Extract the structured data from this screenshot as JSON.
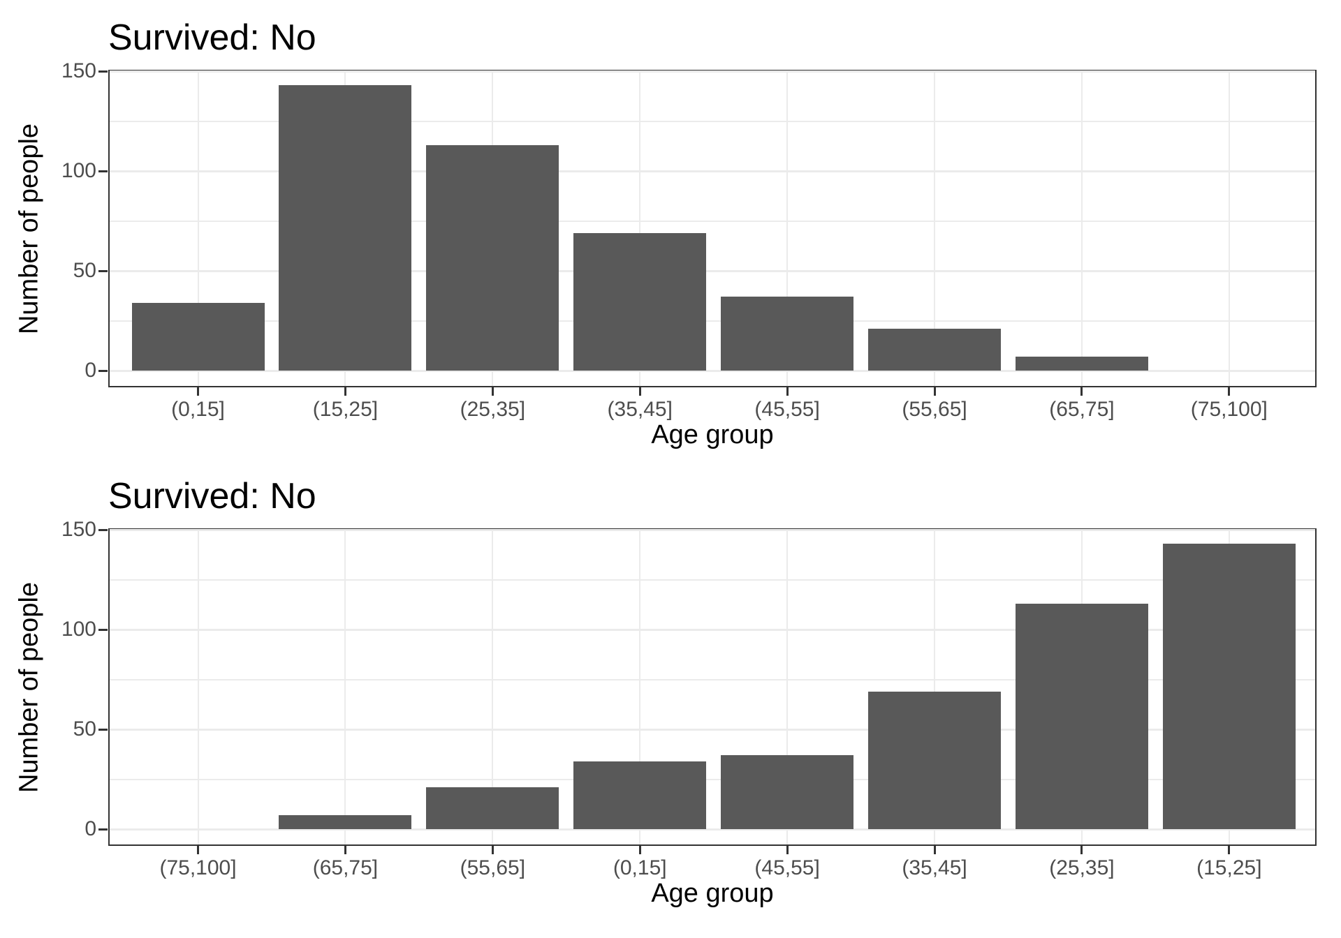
{
  "page": {
    "background": "#ffffff"
  },
  "colors": {
    "bar_fill": "#595959",
    "panel_border": "#333333",
    "gridline": "#ebebeb",
    "tick_text": "#4d4d4d",
    "title_text": "#000000"
  },
  "chart_data": [
    {
      "type": "bar",
      "title": "Survived: No",
      "xlabel": "Age group",
      "ylabel": "Number of people",
      "categories": [
        "(0,15]",
        "(15,25]",
        "(25,35]",
        "(35,45]",
        "(45,55]",
        "(55,65]",
        "(65,75]",
        "(75,100]"
      ],
      "values": [
        34,
        143,
        113,
        69,
        37,
        21,
        7,
        0
      ],
      "ylim": [
        0,
        150
      ],
      "yticks": [
        0,
        50,
        100,
        150
      ],
      "yminor": [
        25,
        75,
        125
      ],
      "grid": "on",
      "legend": "none",
      "note": "age groups in natural order"
    },
    {
      "type": "bar",
      "title": "Survived: No",
      "xlabel": "Age group",
      "ylabel": "Number of people",
      "categories": [
        "(75,100]",
        "(65,75]",
        "(55,65]",
        "(0,15]",
        "(45,55]",
        "(35,45]",
        "(25,35]",
        "(15,25]"
      ],
      "values": [
        0,
        7,
        21,
        34,
        37,
        69,
        113,
        143
      ],
      "ylim": [
        0,
        150
      ],
      "yticks": [
        0,
        50,
        100,
        150
      ],
      "yminor": [
        25,
        75,
        125
      ],
      "grid": "on",
      "legend": "none",
      "note": "age groups sorted by ascending count"
    }
  ]
}
